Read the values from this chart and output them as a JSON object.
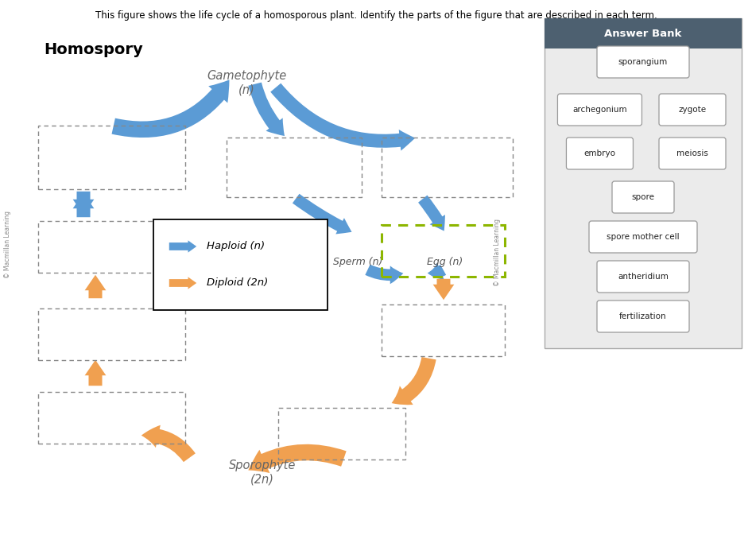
{
  "title": "This figure shows the life cycle of a homosporous plant. Identify the parts of the figure that are described in each term.",
  "homospory_label": "Homospory",
  "gametophyte_label": "Gametophyte\n(n)",
  "sporophyte_label": "Sporophyte\n(2n)",
  "sperm_label": "Sperm (n)",
  "egg_label": "Egg (n)",
  "haploid_label": "Haploid (n)",
  "diploid_label": "Diploid (2n)",
  "blue_color": "#5B9BD5",
  "orange_color": "#F0A050",
  "answer_bank_bg": "#4d6070",
  "answer_bank_inner_bg": "#ebebeb",
  "answer_bank_title": "Answer Bank",
  "answer_bank_items": [
    "sporangium",
    "archegonium",
    "zygote",
    "embryo",
    "meiosis",
    "spore",
    "spore mother cell",
    "antheridium",
    "fertilization"
  ],
  "copyright_text": "© Macmillan Learning",
  "fig_width": 9.46,
  "fig_height": 6.78,
  "dpi": 100
}
